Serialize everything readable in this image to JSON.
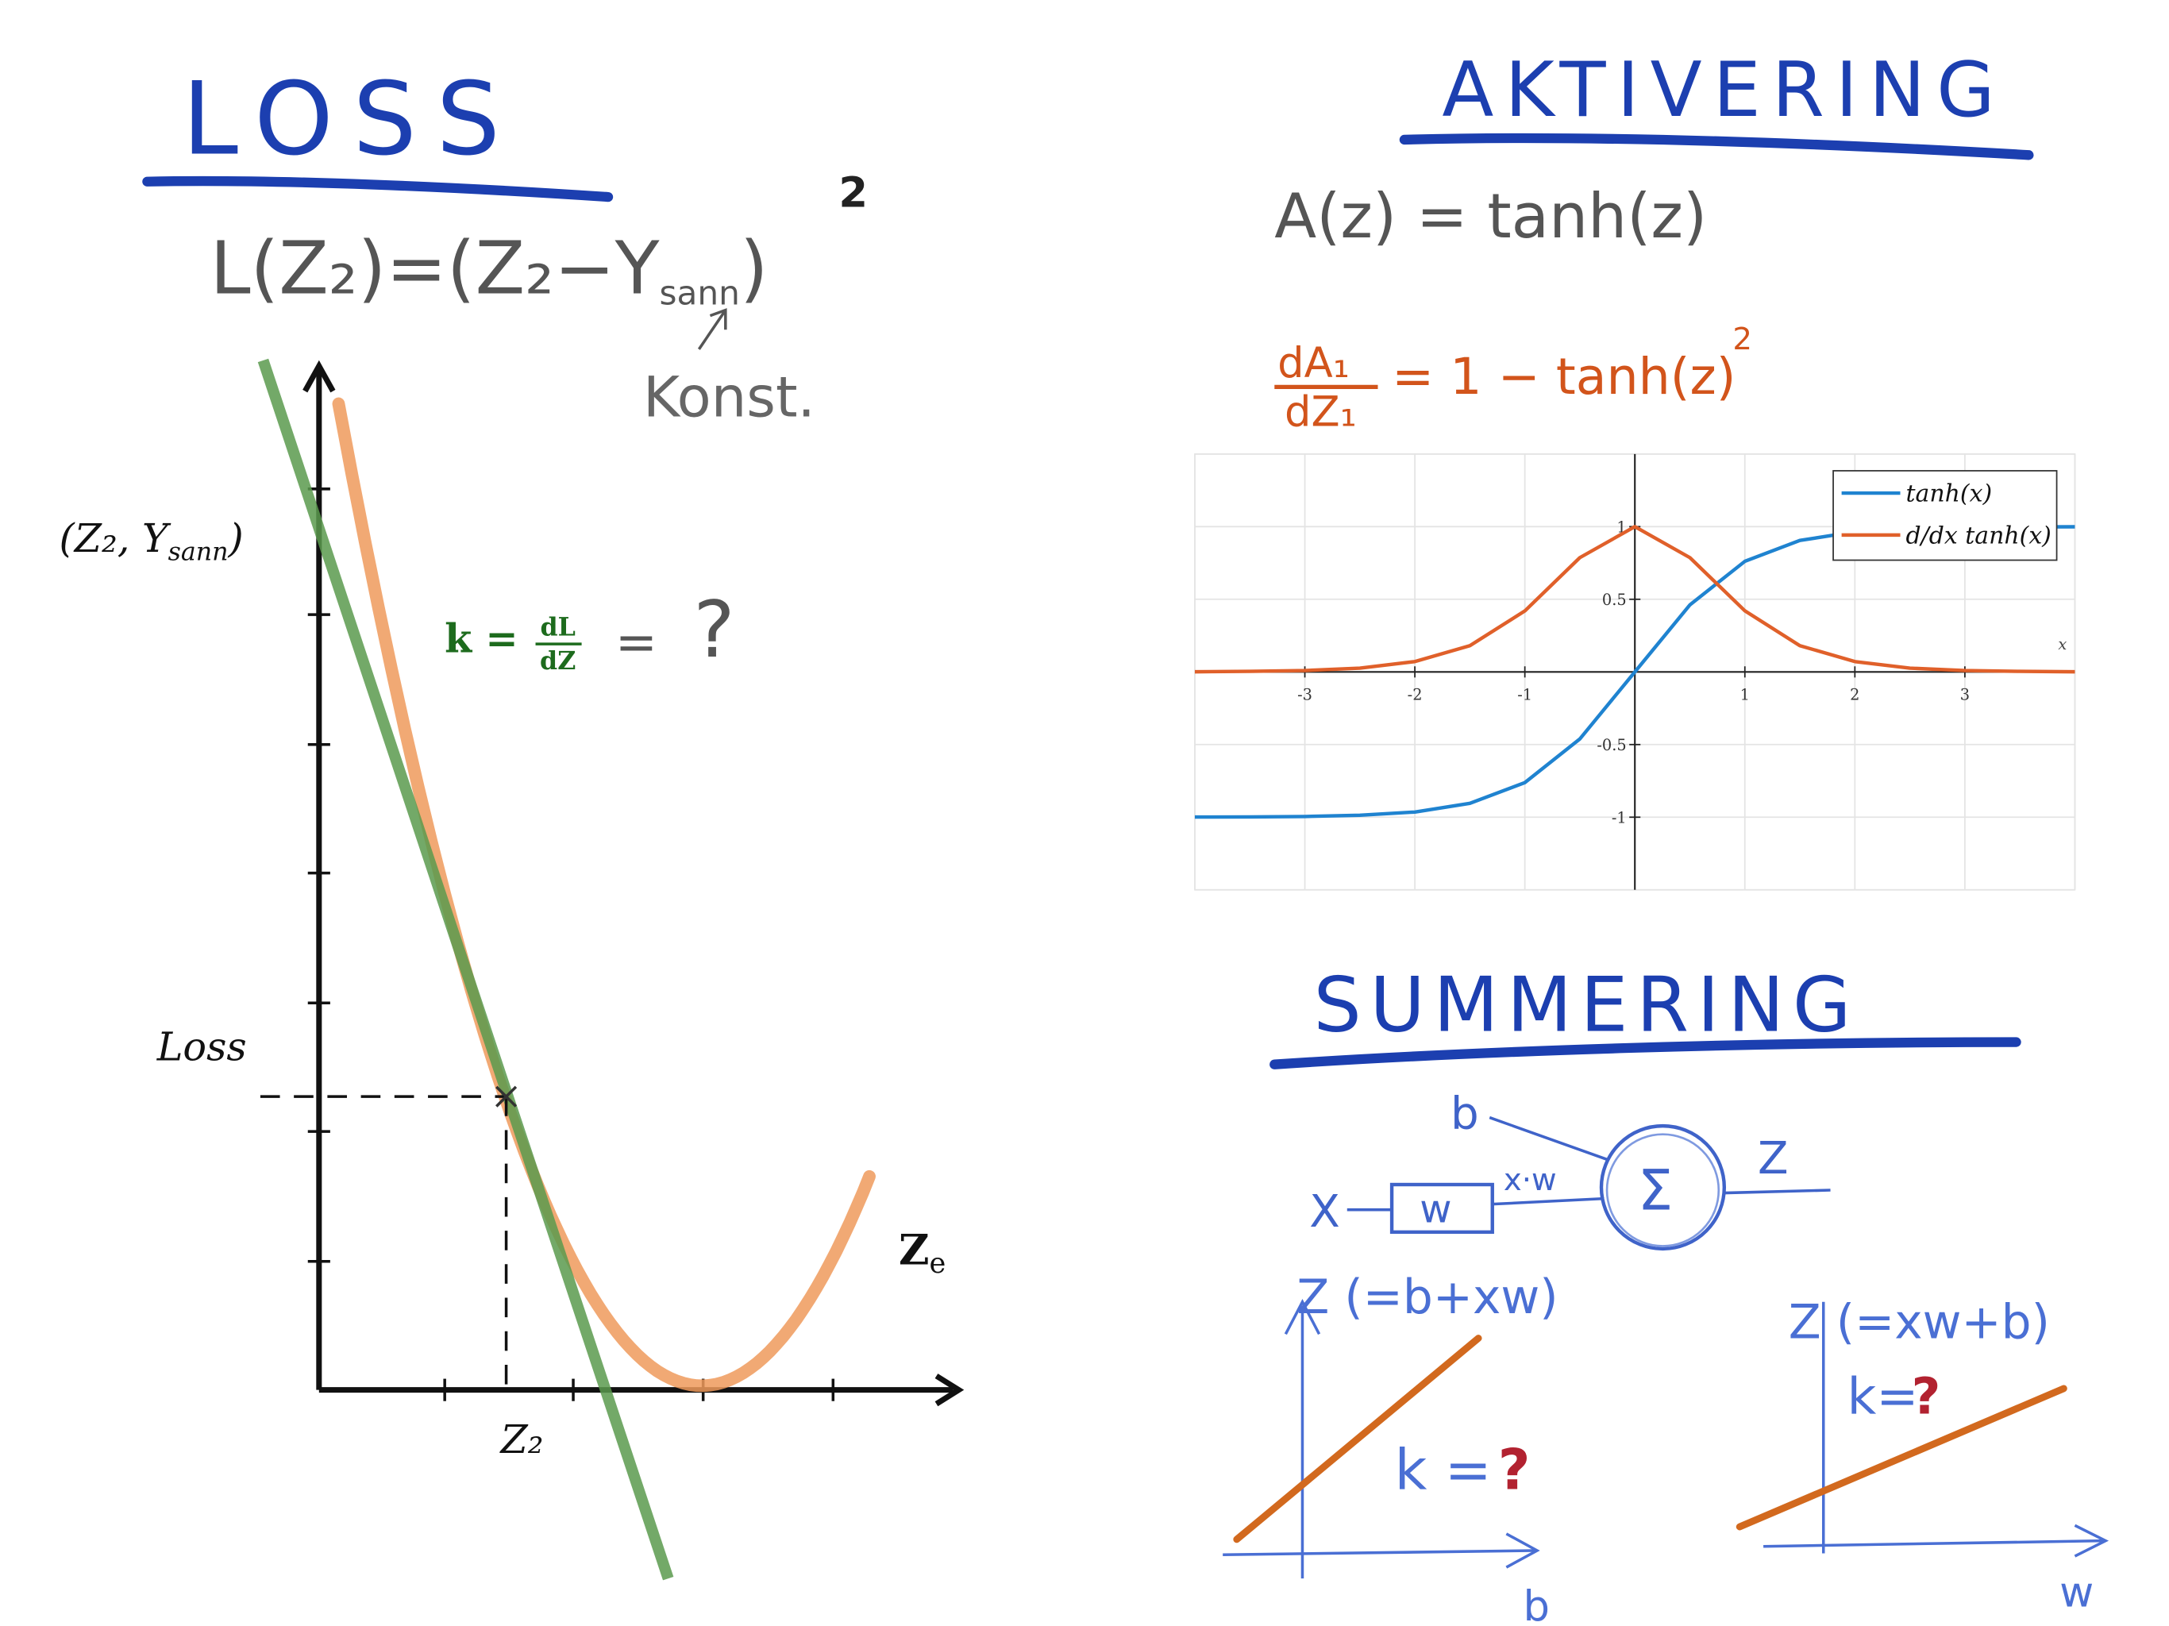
{
  "colors": {
    "heading": "#1c3fb0",
    "ink": "#555555",
    "derivative": "#d2541b",
    "pen_blue": "#3f63c9",
    "mark_red": "#b22230",
    "tangent_green": "#5a9a4e",
    "loss_curve_orange": "#ee9a5c",
    "line_orange": "#d2691e",
    "k_green": "#1d6b1d",
    "tanh_blue": "#1f83d0",
    "dtanh_orange": "#e0602a"
  },
  "loss": {
    "heading": "LOSS",
    "formula_main": "L(Z₂)=(Z₂−Y",
    "formula_sub": "sann",
    "formula_close": ")",
    "formula_exp": "2",
    "konst_label": "Konst.",
    "point_label_main": "(Z₂, Y",
    "point_label_sub": "sann",
    "point_label_close": ")",
    "k_label": "k =",
    "k_frac_num": "dL",
    "k_frac_den": "dZ",
    "k_equals": "=",
    "k_question": "?",
    "y_label": "Loss",
    "x_tick_label": "Z₂",
    "x_axis_label": "Z",
    "x_axis_label_cut": "e"
  },
  "activation": {
    "heading": "AKTIVERING",
    "formula": "A(z) = tanh(z)",
    "deriv_num": "dA₁",
    "deriv_den": "dZ₁",
    "deriv_rhs": "= 1 − tanh(z)",
    "deriv_exp": "2"
  },
  "chart_data": {
    "type": "line",
    "x_axis_label": "x",
    "xlim": [
      -4,
      4
    ],
    "ylim": [
      -1.5,
      1.5
    ],
    "x_ticks": [
      "-3",
      "-2",
      "-1",
      "1",
      "2",
      "3"
    ],
    "y_ticks": [
      "1",
      "0.5",
      "-0.5",
      "-1"
    ],
    "grid": true,
    "legend_position": "top-right",
    "series": [
      {
        "name": "tanh(x)",
        "x": [
          -4,
          -3.5,
          -3,
          -2.5,
          -2,
          -1.5,
          -1,
          -0.5,
          0,
          0.5,
          1,
          1.5,
          2,
          2.5,
          3,
          3.5,
          4
        ],
        "y": [
          -0.999,
          -0.998,
          -0.995,
          -0.987,
          -0.964,
          -0.905,
          -0.762,
          -0.462,
          0,
          0.462,
          0.762,
          0.905,
          0.964,
          0.987,
          0.995,
          0.998,
          0.999
        ]
      },
      {
        "name": "d/dx tanh(x)",
        "x": [
          -4,
          -3.5,
          -3,
          -2.5,
          -2,
          -1.5,
          -1,
          -0.5,
          0,
          0.5,
          1,
          1.5,
          2,
          2.5,
          3,
          3.5,
          4
        ],
        "y": [
          0.001,
          0.004,
          0.01,
          0.026,
          0.071,
          0.181,
          0.42,
          0.787,
          1,
          0.787,
          0.42,
          0.181,
          0.071,
          0.026,
          0.01,
          0.004,
          0.001
        ]
      }
    ]
  },
  "summation": {
    "heading": "SUMMERING",
    "node_b": "b",
    "node_x": "X",
    "node_w": "w",
    "node_xw": "x·w",
    "node_sigma": "Σ",
    "node_z": "Z",
    "left_ylabel": "Z (=b+xw)",
    "left_k": "k =",
    "left_q": "?",
    "left_xlabel": "b",
    "right_ylabel": "Z (=xw+b)",
    "right_k": "k=",
    "right_q": "?",
    "right_xlabel": "w"
  }
}
